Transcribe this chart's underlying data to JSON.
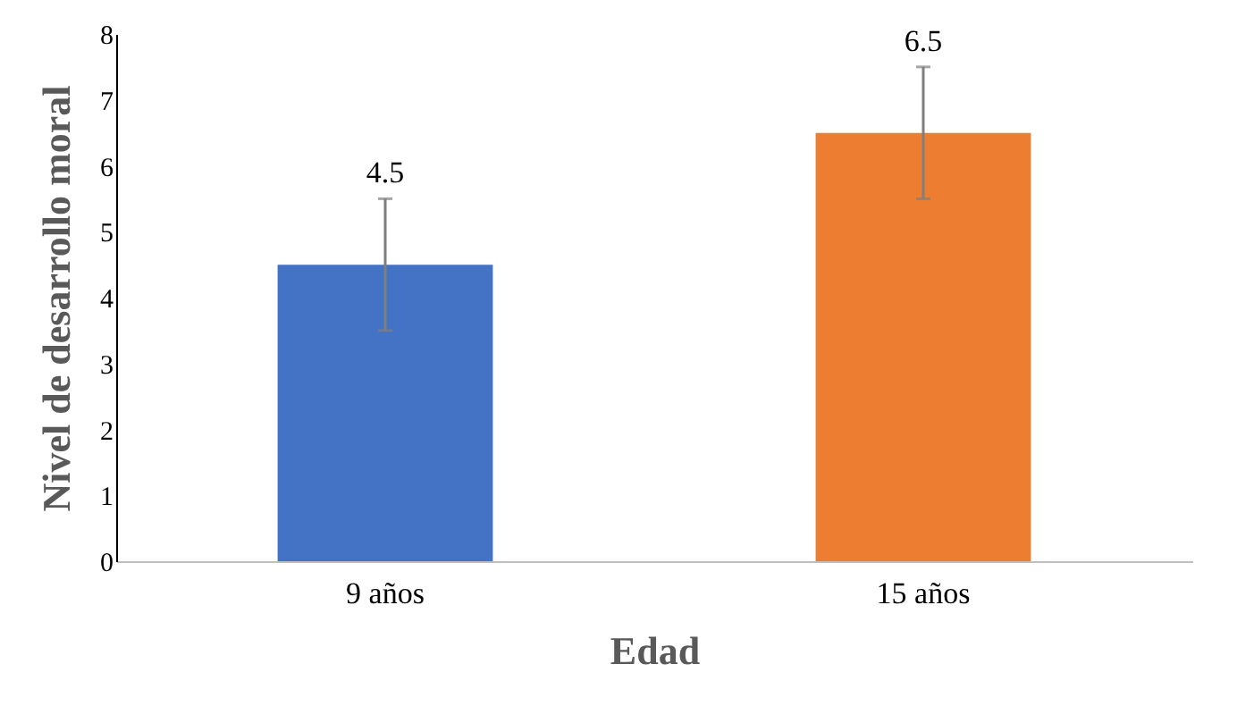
{
  "chart_data": {
    "type": "bar",
    "xlabel": "Edad",
    "ylabel": "Nivel de desarrollo moral",
    "categories": [
      "9 años",
      "15 años"
    ],
    "values": [
      4.5,
      6.5
    ],
    "colors": [
      "#4472c4",
      "#ed7d31"
    ],
    "errors": [
      1,
      1
    ],
    "data_labels": true,
    "ylim": [
      0,
      8
    ],
    "yticks": [
      0,
      1,
      2,
      3,
      4,
      5,
      6,
      7,
      8
    ],
    "grid": false
  }
}
